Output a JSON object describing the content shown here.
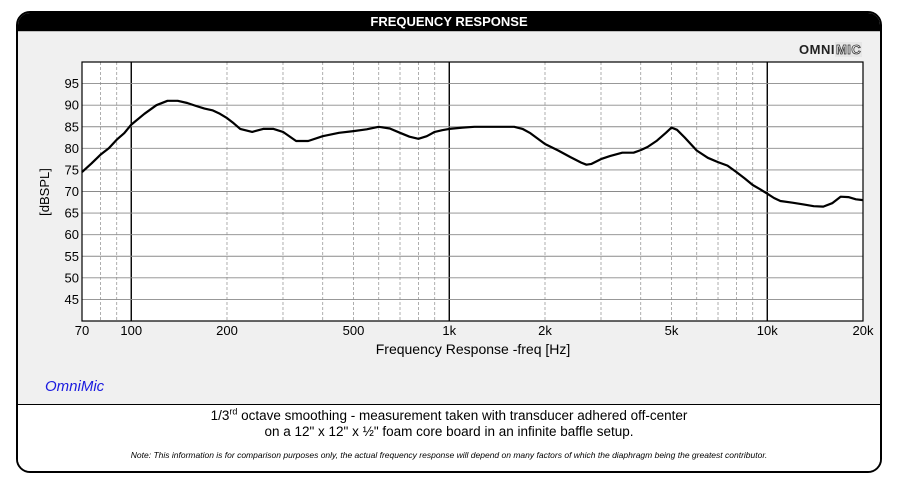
{
  "header": {
    "title": "FREQUENCY RESPONSE"
  },
  "logo": {
    "part1": "OMNI",
    "part2": "MIC"
  },
  "brand": "OmniMic",
  "notes": {
    "line1_pre": "1/3",
    "line1_sup": "rd",
    "line1_post": " octave smoothing - measurement taken with transducer adhered off-center",
    "line2": "on a 12\" x 12\" x ½\" foam core board in an infinite baffle setup.",
    "disclaimer": "Note: This information is for comparison purposes only, the actual frequency response will depend on many factors of which the diaphragm being the greatest contributor."
  },
  "chart_data": {
    "type": "line",
    "title": "",
    "xlabel": "Frequency Response -freq [Hz]",
    "ylabel": "[dBSPL]",
    "xscale": "log",
    "xlim": [
      70,
      20000
    ],
    "ylim": [
      40,
      100
    ],
    "grid": true,
    "x_ticks": [
      70,
      100,
      200,
      500,
      1000,
      2000,
      5000,
      10000,
      20000
    ],
    "x_tick_labels": [
      "70",
      "100",
      "200",
      "500",
      "1k",
      "2k",
      "5k",
      "10k",
      "20k"
    ],
    "y_ticks": [
      45,
      50,
      55,
      60,
      65,
      70,
      75,
      80,
      85,
      90,
      95
    ],
    "y_tick_labels": [
      "45",
      "50",
      "55",
      "60",
      "65",
      "70",
      "75",
      "80",
      "85",
      "90",
      "95"
    ],
    "line_color": "#000000",
    "series": [
      {
        "x": [
          70,
          75,
          80,
          85,
          90,
          95,
          100,
          110,
          120,
          130,
          140,
          150,
          160,
          170,
          180,
          190,
          200,
          210,
          220,
          240,
          260,
          280,
          300,
          330,
          360,
          400,
          450,
          500,
          550,
          600,
          650,
          700,
          750,
          800,
          850,
          900,
          950,
          1000,
          1100,
          1200,
          1300,
          1400,
          1500,
          1600,
          1700,
          1800,
          2000,
          2200,
          2400,
          2600,
          2700,
          2800,
          3000,
          3200,
          3500,
          3800,
          4000,
          4200,
          4500,
          4800,
          5000,
          5200,
          5500,
          6000,
          6500,
          7000,
          7500,
          8000,
          8500,
          9000,
          9500,
          10000,
          10500,
          11000,
          12000,
          13000,
          14000,
          15000,
          16000,
          17000,
          18000,
          19000,
          20000
        ],
        "y": [
          74.5,
          76.5,
          78.5,
          80,
          82,
          83.5,
          85.5,
          88,
          90,
          91,
          91,
          90.5,
          89.8,
          89.2,
          88.8,
          88,
          87,
          85.8,
          84.5,
          83.8,
          84.5,
          84.5,
          83.8,
          81.7,
          81.7,
          82.8,
          83.6,
          84.0,
          84.4,
          85.0,
          84.6,
          83.6,
          82.7,
          82.2,
          82.8,
          83.8,
          84.2,
          84.5,
          84.8,
          85.0,
          85.0,
          85.0,
          85.0,
          85.0,
          84.5,
          83.5,
          81.0,
          79.5,
          78.0,
          76.7,
          76.2,
          76.4,
          77.5,
          78.2,
          79.0,
          79.0,
          79.6,
          80.3,
          81.8,
          83.6,
          84.8,
          84.3,
          82.5,
          79.5,
          77.8,
          76.8,
          76.0,
          74.5,
          73.0,
          71.5,
          70.5,
          69.5,
          68.5,
          67.8,
          67.4,
          67.0,
          66.6,
          66.5,
          67.3,
          68.8,
          68.7,
          68.2,
          68.0
        ]
      }
    ]
  }
}
